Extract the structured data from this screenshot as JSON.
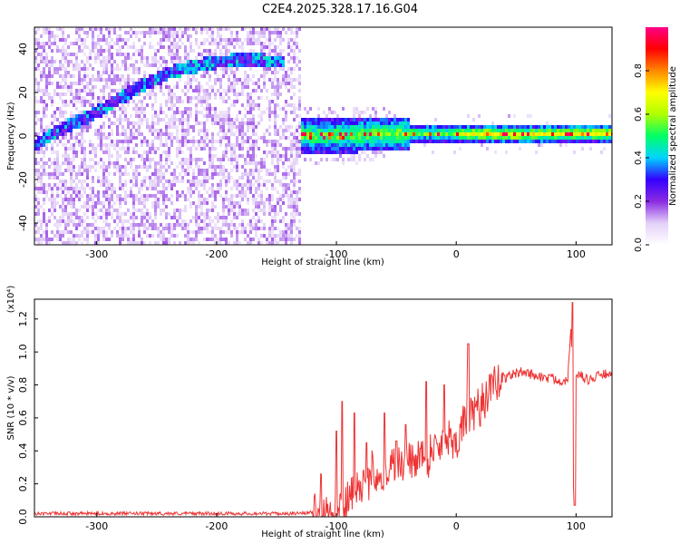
{
  "title": "C2E4.2025.328.17.16.G04",
  "chart_data": [
    {
      "type": "heatmap",
      "xlabel": "Height of straight line (km)",
      "ylabel": "Frequency (Hz)",
      "xlim": [
        -352,
        130
      ],
      "ylim": [
        -50,
        50
      ],
      "xticks": [
        "-300",
        "-200",
        "-100",
        "0",
        "100"
      ],
      "yticks": [
        "-40",
        "-20",
        "0",
        "20",
        "40"
      ],
      "colorbar": {
        "label": "Normalized spectral amplitude",
        "range": [
          0,
          1
        ],
        "ticks": [
          "0.0",
          "0.2",
          "0.4",
          "0.6",
          "0.8"
        ],
        "colors": [
          "#ffffff",
          "#e3d0f8",
          "#8a2be2",
          "#3300ff",
          "#00d4ff",
          "#00ff66",
          "#b0ff00",
          "#ffff00",
          "#ff8800",
          "#ff0000",
          "#ff0088"
        ]
      },
      "features": {
        "drift_line": [
          [
            -352,
            -3
          ],
          [
            -330,
            4
          ],
          [
            -300,
            12
          ],
          [
            -270,
            22
          ],
          [
            -240,
            30
          ],
          [
            -210,
            34
          ],
          [
            -180,
            36
          ],
          [
            -150,
            35
          ]
        ],
        "noise_region_x": [
          -352,
          -130
        ],
        "signal_band": [
          [
            -135,
            1
          ],
          [
            -100,
            1
          ],
          [
            -50,
            2
          ],
          [
            0,
            2
          ],
          [
            50,
            1.5
          ],
          [
            100,
            2
          ],
          [
            130,
            2
          ]
        ]
      }
    },
    {
      "type": "line",
      "xlabel": "Height of straight line (km)",
      "ylabel": "SNR (10 * v/v)",
      "yunit_label": "(x10⁴)",
      "xlim": [
        -352,
        130
      ],
      "ylim": [
        0,
        1.32
      ],
      "xticks": [
        "-300",
        "-200",
        "-100",
        "0",
        "100"
      ],
      "yticks": [
        "0.0",
        "0.2",
        "0.4",
        "0.6",
        "0.8",
        "1.0",
        "1.2"
      ],
      "color": "#ee3333",
      "series": [
        {
          "x": [
            -352,
            -330,
            -300,
            -270,
            -240,
            -210,
            -180,
            -150,
            -130,
            -120,
            -115,
            -110,
            -105,
            -100,
            -95,
            -90,
            -85,
            -80,
            -75,
            -70,
            -65,
            -60,
            -55,
            -50,
            -45,
            -40,
            -35,
            -30,
            -25,
            -20,
            -15,
            -10,
            -5,
            0,
            5,
            10,
            15,
            20,
            25,
            30,
            35,
            40,
            45,
            50,
            55,
            60,
            65,
            70,
            75,
            80,
            85,
            90,
            93,
            96,
            98,
            100,
            102,
            105,
            110,
            115,
            120,
            125,
            130
          ],
          "values": [
            0.02,
            0.02,
            0.02,
            0.02,
            0.02,
            0.02,
            0.02,
            0.02,
            0.02,
            0.03,
            0.1,
            0.04,
            0.06,
            0.05,
            0.07,
            0.1,
            0.18,
            0.22,
            0.15,
            0.3,
            0.25,
            0.22,
            0.3,
            0.35,
            0.3,
            0.35,
            0.32,
            0.42,
            0.3,
            0.45,
            0.4,
            0.5,
            0.48,
            0.45,
            0.55,
            0.62,
            0.6,
            0.7,
            0.72,
            0.78,
            0.82,
            0.84,
            0.86,
            0.87,
            0.88,
            0.87,
            0.86,
            0.85,
            0.84,
            0.84,
            0.83,
            0.82,
            0.84,
            1.2,
            0.08,
            0.85,
            0.87,
            0.85,
            0.83,
            0.84,
            0.86,
            0.87,
            0.84
          ]
        }
      ],
      "annotations": {
        "spikes": [
          [
            -113,
            0.26
          ],
          [
            -100,
            0.52
          ],
          [
            -95,
            0.7
          ],
          [
            -85,
            0.63
          ],
          [
            -75,
            0.45
          ],
          [
            -60,
            0.63
          ],
          [
            -50,
            0.46
          ],
          [
            -42,
            0.56
          ],
          [
            -25,
            0.82
          ],
          [
            -10,
            0.8
          ],
          [
            10,
            1.05
          ],
          [
            20,
            0.55
          ],
          [
            97,
            1.3
          ],
          [
            99,
            0.07
          ]
        ]
      }
    }
  ]
}
